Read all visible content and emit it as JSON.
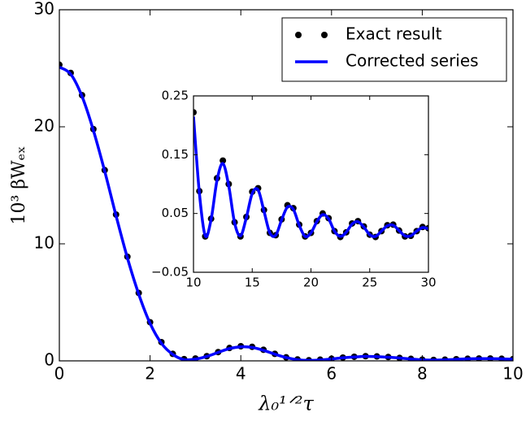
{
  "chart_data": [
    {
      "type": "line",
      "xlabel": "λ₀¹ᐟ²τ",
      "ylabel": "10³ βWₑₓ",
      "x": [
        0,
        0.25,
        0.5,
        0.75,
        1,
        1.25,
        1.5,
        1.75,
        2,
        2.25,
        2.5,
        2.75,
        3,
        3.25,
        3.5,
        3.75,
        4,
        4.25,
        4.5,
        4.75,
        5,
        5.25,
        5.5,
        5.75,
        6,
        6.25,
        6.5,
        6.75,
        7,
        7.25,
        7.5,
        7.75,
        8,
        8.25,
        8.5,
        8.75,
        9,
        9.25,
        9.5,
        9.75,
        10
      ],
      "series": [
        {
          "name": "Exact result",
          "color": "#000000",
          "style": "markers",
          "values": [
            25.3,
            24.6,
            22.7,
            19.8,
            16.3,
            12.5,
            8.9,
            5.8,
            3.3,
            1.6,
            0.6,
            0.15,
            0.2,
            0.4,
            0.75,
            1.1,
            1.25,
            1.2,
            0.95,
            0.6,
            0.3,
            0.12,
            0.05,
            0.1,
            0.18,
            0.28,
            0.35,
            0.4,
            0.38,
            0.33,
            0.25,
            0.17,
            0.1,
            0.08,
            0.1,
            0.14,
            0.18,
            0.2,
            0.2,
            0.18,
            0.15
          ]
        },
        {
          "name": "Corrected series",
          "color": "#0000ff",
          "style": "line",
          "values": [
            25.1,
            24.5,
            22.6,
            19.7,
            16.2,
            12.4,
            8.8,
            5.7,
            3.2,
            1.5,
            0.55,
            0.1,
            0.15,
            0.38,
            0.72,
            1.05,
            1.2,
            1.15,
            0.9,
            0.57,
            0.28,
            0.1,
            0.04,
            0.08,
            0.16,
            0.26,
            0.33,
            0.38,
            0.36,
            0.31,
            0.24,
            0.16,
            0.09,
            0.07,
            0.09,
            0.13,
            0.17,
            0.19,
            0.19,
            0.17,
            0.14
          ]
        }
      ],
      "xlim": [
        0,
        10
      ],
      "ylim": [
        0,
        30
      ],
      "xticks": [
        0,
        2,
        4,
        6,
        8,
        10
      ],
      "yticks": [
        0,
        10,
        20,
        30
      ],
      "legend": "upper right"
    },
    {
      "type": "line",
      "x": [
        10,
        10.5,
        11,
        11.5,
        12,
        12.5,
        13,
        13.5,
        14,
        14.5,
        15,
        15.5,
        16,
        16.5,
        17,
        17.5,
        18,
        18.5,
        19,
        19.5,
        20,
        20.5,
        21,
        21.5,
        22,
        22.5,
        23,
        23.5,
        24,
        24.5,
        25,
        25.5,
        26,
        26.5,
        27,
        27.5,
        28,
        28.5,
        29,
        29.5,
        30
      ],
      "series": [
        {
          "color": "#000000",
          "style": "markers",
          "values": [
            0.222,
            0.088,
            0.011,
            0.041,
            0.11,
            0.14,
            0.1,
            0.035,
            0.011,
            0.044,
            0.087,
            0.093,
            0.056,
            0.017,
            0.013,
            0.04,
            0.064,
            0.059,
            0.031,
            0.011,
            0.017,
            0.037,
            0.05,
            0.042,
            0.02,
            0.01,
            0.018,
            0.033,
            0.037,
            0.028,
            0.014,
            0.01,
            0.02,
            0.03,
            0.031,
            0.021,
            0.011,
            0.012,
            0.02,
            0.027,
            0.025
          ]
        },
        {
          "color": "#0000ff",
          "style": "line",
          "values": [
            0.215,
            0.085,
            0.012,
            0.04,
            0.106,
            0.135,
            0.097,
            0.034,
            0.012,
            0.043,
            0.084,
            0.09,
            0.054,
            0.017,
            0.013,
            0.039,
            0.061,
            0.057,
            0.03,
            0.011,
            0.017,
            0.036,
            0.048,
            0.041,
            0.02,
            0.011,
            0.018,
            0.032,
            0.036,
            0.027,
            0.014,
            0.011,
            0.02,
            0.029,
            0.03,
            0.021,
            0.012,
            0.012,
            0.02,
            0.026,
            0.024
          ]
        }
      ],
      "xlim": [
        10,
        30
      ],
      "ylim": [
        -0.05,
        0.25
      ],
      "xticks": [
        10,
        15,
        20,
        25,
        30
      ],
      "yticks": [
        {
          "value": -0.05,
          "label": "−0.05"
        },
        0.05,
        0.15,
        0.25
      ]
    }
  ]
}
